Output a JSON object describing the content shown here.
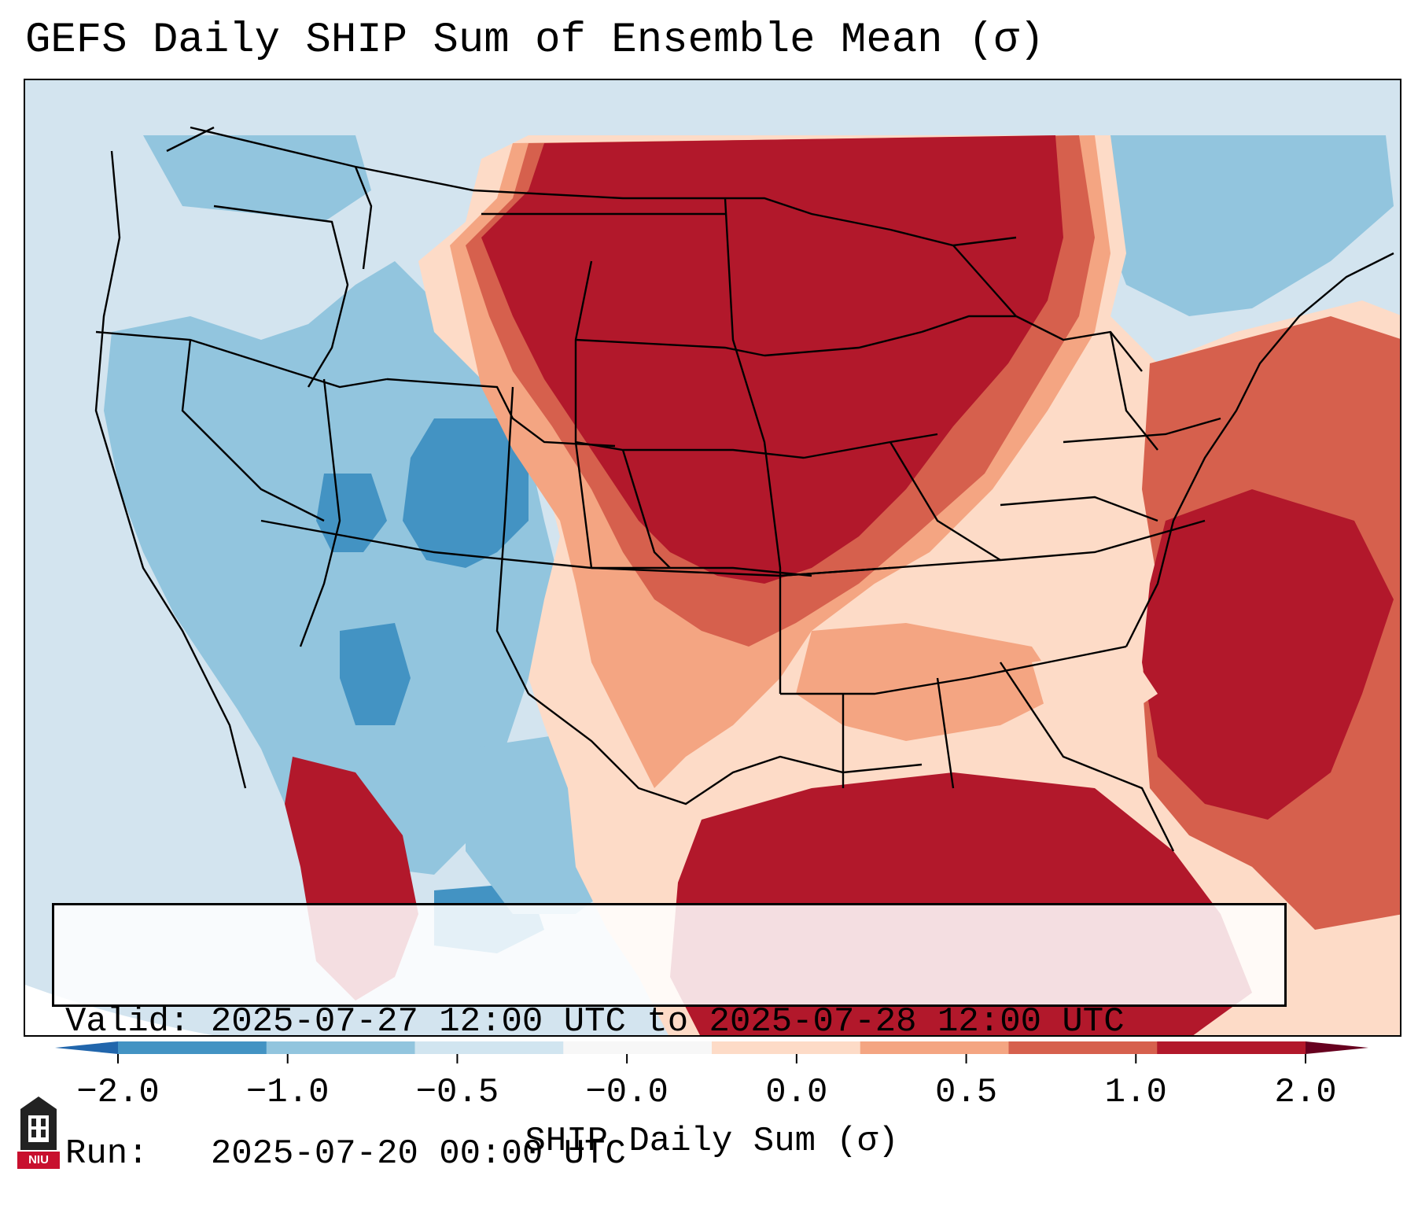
{
  "title": "GEFS Daily SHIP Sum of Ensemble Mean (σ)",
  "info": {
    "valid_line": "Valid: 2025-07-27 12:00 UTC to 2025-07-28 12:00 UTC",
    "run_line": "Run:   2025-07-20 00:00 UTC"
  },
  "colorbar": {
    "label": "SHIP Daily Sum (σ)",
    "ticks": [
      "−2.0",
      "−1.0",
      "−0.5",
      "−0.0",
      "0.0",
      "0.5",
      "1.0",
      "2.0"
    ],
    "colors": [
      "#4393c3",
      "#92c5de",
      "#d1e5f0",
      "#f7f7f7",
      "#fddbc7",
      "#f4a582",
      "#d6604d",
      "#b2182b"
    ],
    "extend": "both"
  },
  "logo": {
    "text": "NIU"
  },
  "map": {
    "region": "Continental United States",
    "levels": {
      "strong_negative": "#4393c3",
      "negative": "#92c5de",
      "weak_negative": "#d1e5f0",
      "weak_positive": "#fddbc7",
      "positive": "#f4a582",
      "strong_positive": "#d6604d",
      "very_strong_positive": "#b2182b"
    }
  }
}
